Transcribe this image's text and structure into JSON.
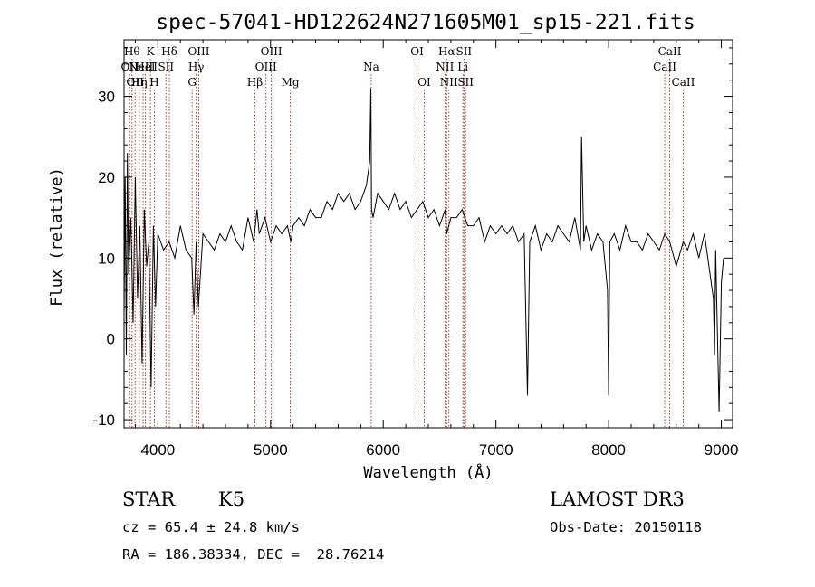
{
  "chart_data": {
    "type": "line",
    "title": "spec-57041-HD122624N271605M01_sp15-221.fits",
    "xlabel": "Wavelength (Å)",
    "ylabel": "Flux (relative)",
    "xlim": [
      3700,
      9100
    ],
    "ylim": [
      -11,
      37
    ],
    "xticks": [
      4000,
      5000,
      6000,
      7000,
      8000,
      9000
    ],
    "yticks": [
      -10,
      0,
      10,
      20,
      30
    ],
    "grid": false,
    "series": [
      {
        "color": "#000000",
        "x": [
          3700,
          3710,
          3720,
          3730,
          3740,
          3760,
          3780,
          3800,
          3820,
          3840,
          3860,
          3880,
          3900,
          3920,
          3940,
          3960,
          3980,
          4000,
          4050,
          4100,
          4150,
          4200,
          4250,
          4300,
          4320,
          4340,
          4360,
          4400,
          4450,
          4500,
          4550,
          4600,
          4650,
          4700,
          4750,
          4800,
          4850,
          4880,
          4900,
          4950,
          5000,
          5050,
          5100,
          5150,
          5180,
          5200,
          5250,
          5300,
          5350,
          5400,
          5450,
          5500,
          5550,
          5600,
          5650,
          5700,
          5750,
          5800,
          5850,
          5880,
          5890,
          5896,
          5910,
          5950,
          6000,
          6050,
          6100,
          6150,
          6200,
          6250,
          6300,
          6350,
          6400,
          6450,
          6500,
          6550,
          6563,
          6600,
          6650,
          6700,
          6750,
          6800,
          6850,
          6900,
          6950,
          7000,
          7050,
          7100,
          7150,
          7200,
          7250,
          7280,
          7300,
          7350,
          7400,
          7450,
          7500,
          7550,
          7600,
          7650,
          7700,
          7750,
          7760,
          7780,
          7800,
          7850,
          7900,
          7950,
          7990,
          8000,
          8010,
          8050,
          8100,
          8150,
          8200,
          8250,
          8300,
          8350,
          8400,
          8450,
          8498,
          8542,
          8600,
          8662,
          8700,
          8750,
          8800,
          8850,
          8900,
          8930,
          8940,
          8950,
          8980,
          9000,
          9020
        ],
        "y": [
          3,
          20,
          -2,
          23,
          8,
          15,
          2,
          20,
          5,
          14,
          -3,
          16,
          9,
          12,
          -6,
          14,
          4,
          13,
          11,
          12,
          10,
          14,
          11,
          10,
          3,
          12,
          4,
          13,
          12,
          11,
          13,
          12,
          14,
          12,
          11,
          15,
          12,
          16,
          13,
          15,
          12,
          14,
          13,
          14,
          12,
          14,
          15,
          14,
          16,
          15,
          15,
          17,
          16,
          18,
          17,
          18,
          16,
          17,
          19,
          22,
          31,
          16,
          15,
          18,
          17,
          16,
          18,
          16,
          17,
          15,
          16,
          17,
          15,
          16,
          14,
          16,
          13,
          15,
          15,
          16,
          14,
          14,
          15,
          12,
          14,
          13,
          14,
          13,
          14,
          12,
          13,
          -7,
          12,
          14,
          11,
          13,
          12,
          14,
          13,
          12,
          15,
          11,
          25,
          12,
          14,
          11,
          13,
          12,
          6,
          -7,
          12,
          13,
          11,
          14,
          12,
          12,
          11,
          13,
          12,
          11,
          13,
          12,
          9,
          12,
          11,
          13,
          10,
          13,
          8,
          5,
          -2,
          11,
          -9,
          7,
          10
        ]
      }
    ],
    "lines": [
      {
        "lambda": 3750,
        "label": "OII",
        "row": 2
      },
      {
        "lambda": 3771,
        "label": "Hθ",
        "row": 1
      },
      {
        "lambda": 3798,
        "label": "OII",
        "row": 3
      },
      {
        "lambda": 3835,
        "label": "Hη",
        "row": 3
      },
      {
        "lambda": 3869,
        "label": "NeIII",
        "row": 2
      },
      {
        "lambda": 3889,
        "label": "HeI",
        "row": 2
      },
      {
        "lambda": 3934,
        "label": "K",
        "row": 1
      },
      {
        "lambda": 3969,
        "label": "H",
        "row": 3
      },
      {
        "lambda": 4072,
        "label": "SII",
        "row": 2
      },
      {
        "lambda": 4102,
        "label": "Hδ",
        "row": 1
      },
      {
        "lambda": 4304,
        "label": "G",
        "row": 3
      },
      {
        "lambda": 4340,
        "label": "Hγ",
        "row": 2
      },
      {
        "lambda": 4363,
        "label": "OIII",
        "row": 1
      },
      {
        "lambda": 4861,
        "label": "Hβ",
        "row": 3
      },
      {
        "lambda": 4959,
        "label": "OIII",
        "row": 2
      },
      {
        "lambda": 5007,
        "label": "OIII",
        "row": 1
      },
      {
        "lambda": 5175,
        "label": "Mg",
        "row": 3
      },
      {
        "lambda": 5893,
        "label": "Na",
        "row": 2
      },
      {
        "lambda": 6300,
        "label": "OI",
        "row": 1
      },
      {
        "lambda": 6364,
        "label": "OI",
        "row": 3
      },
      {
        "lambda": 6548,
        "label": "NII",
        "row": 2
      },
      {
        "lambda": 6563,
        "label": "Hα",
        "row": 1
      },
      {
        "lambda": 6583,
        "label": "NII",
        "row": 3
      },
      {
        "lambda": 6707,
        "label": "Li",
        "row": 2
      },
      {
        "lambda": 6716,
        "label": "SII",
        "row": 1
      },
      {
        "lambda": 6731,
        "label": "SII",
        "row": 3
      },
      {
        "lambda": 8498,
        "label": "CaII",
        "row": 2
      },
      {
        "lambda": 8542,
        "label": "CaII",
        "row": 1
      },
      {
        "lambda": 8662,
        "label": "CaII",
        "row": 3
      }
    ]
  },
  "info": {
    "obj_class": "STAR",
    "subclass": "K5",
    "survey": "LAMOST DR3",
    "cz": "cz = 65.4 ± 24.8 km/s",
    "obs_date": "Obs-Date: 20150118",
    "radec": "RA = 186.38334, DEC =  28.76214"
  },
  "colors": {
    "line_marker": "#b22222",
    "spectrum": "#000000",
    "axes": "#000000"
  }
}
